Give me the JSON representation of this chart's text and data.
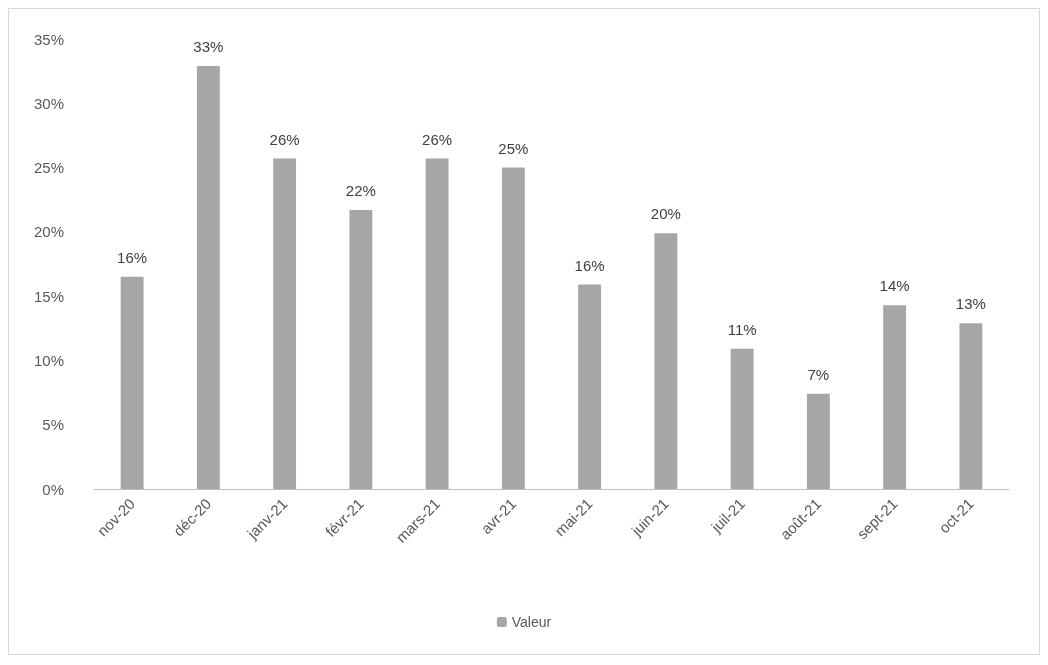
{
  "chart_data": {
    "type": "bar",
    "categories": [
      "nov-20",
      "déc-20",
      "janv-21",
      "févr-21",
      "mars-21",
      "avr-21",
      "mai-21",
      "juin-21",
      "juil-21",
      "août-21",
      "sept-21",
      "oct-21"
    ],
    "series": [
      {
        "name": "Valeur",
        "color": "#a6a6a6",
        "values": [
          16.5,
          32.9,
          25.7,
          21.7,
          25.7,
          25,
          15.9,
          19.9,
          10.9,
          7.4,
          14.3,
          12.9
        ],
        "value_labels": [
          "16%",
          "33%",
          "26%",
          "22%",
          "26%",
          "25%",
          "16%",
          "20%",
          "11%",
          "7%",
          "14%",
          "13%"
        ]
      }
    ],
    "ylim": [
      0,
      35
    ],
    "yticks": [
      {
        "value": 0,
        "label": "0%"
      },
      {
        "value": 5,
        "label": "5%"
      },
      {
        "value": 10,
        "label": "10%"
      },
      {
        "value": 15,
        "label": "15%"
      },
      {
        "value": 20,
        "label": "20%"
      },
      {
        "value": 25,
        "label": "25%"
      },
      {
        "value": 30,
        "label": "30%"
      },
      {
        "value": 35,
        "label": "35%"
      }
    ],
    "grid": false,
    "legend": "bottom"
  }
}
